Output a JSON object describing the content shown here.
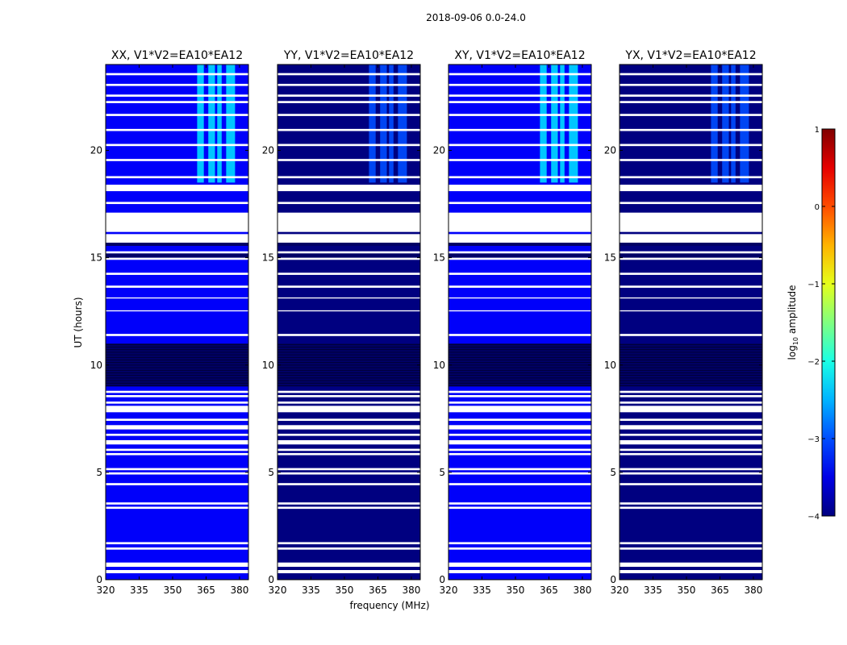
{
  "chart_data": {
    "type": "heatmap",
    "suptitle": "2018-09-06 0.0-24.0",
    "xlabel": "frequency (MHz)",
    "ylabel": "UT (hours)",
    "xlim": [
      320,
      384
    ],
    "ylim": [
      0,
      24
    ],
    "xticks": [
      320,
      335,
      350,
      365,
      380
    ],
    "yticks": [
      0,
      5,
      10,
      15,
      20
    ],
    "panels": [
      {
        "title": "XX, V1*V2=EA10*EA12",
        "base_level": -3.4,
        "rfi_level": -2.3
      },
      {
        "title": "YY, V1*V2=EA10*EA12",
        "base_level": -4.0,
        "rfi_level": -3.0
      },
      {
        "title": "XY, V1*V2=EA10*EA12",
        "base_level": -3.4,
        "rfi_level": -2.3
      },
      {
        "title": "YX, V1*V2=EA10*EA12",
        "base_level": -4.0,
        "rfi_level": -3.0
      }
    ],
    "rfi_channels_mhz": [
      [
        361,
        364
      ],
      [
        366,
        369
      ],
      [
        370,
        372
      ],
      [
        374,
        378
      ]
    ],
    "rfi_time_range_hours": [
      18.5,
      24
    ],
    "flagged_bands_hours": [
      [
        0.3,
        0.45
      ],
      [
        0.6,
        0.8
      ],
      [
        1.4,
        1.5
      ],
      [
        1.65,
        1.75
      ],
      [
        3.3,
        3.4
      ],
      [
        3.5,
        3.6
      ],
      [
        4.4,
        4.5
      ],
      [
        4.9,
        5.0
      ],
      [
        5.1,
        5.2
      ],
      [
        5.8,
        5.9
      ],
      [
        6.0,
        6.1
      ],
      [
        6.3,
        6.5
      ],
      [
        6.7,
        6.8
      ],
      [
        7.0,
        7.2
      ],
      [
        7.4,
        7.5
      ],
      [
        7.8,
        8.1
      ],
      [
        8.2,
        8.3
      ],
      [
        8.5,
        8.6
      ],
      [
        8.7,
        8.8
      ],
      [
        11.35,
        11.45
      ],
      [
        12.5,
        12.55
      ],
      [
        13.1,
        13.15
      ],
      [
        13.6,
        13.7
      ],
      [
        14.2,
        14.3
      ],
      [
        14.9,
        15.0
      ],
      [
        15.2,
        15.3
      ],
      [
        15.7,
        16.1
      ],
      [
        16.2,
        17.1
      ],
      [
        17.5,
        17.6
      ],
      [
        18.1,
        18.4
      ],
      [
        18.7,
        18.8
      ],
      [
        19.5,
        19.6
      ],
      [
        20.2,
        20.3
      ],
      [
        20.9,
        21.0
      ],
      [
        21.6,
        21.7
      ],
      [
        22.2,
        22.3
      ],
      [
        22.5,
        22.6
      ],
      [
        23.0,
        23.1
      ],
      [
        23.5,
        23.6
      ]
    ],
    "dark_bands_hours": [
      [
        9.0,
        11.0
      ],
      [
        15.0,
        15.2
      ],
      [
        15.55,
        15.7
      ]
    ],
    "colorbar": {
      "label": "log10 amplitude",
      "range": [
        -4,
        1
      ],
      "ticks": [
        1,
        0,
        -1,
        -2,
        -3,
        -4
      ],
      "tick_labels": [
        "1",
        "0",
        "−1",
        "−2",
        "−3",
        "−4"
      ],
      "colormap": "jet"
    }
  }
}
